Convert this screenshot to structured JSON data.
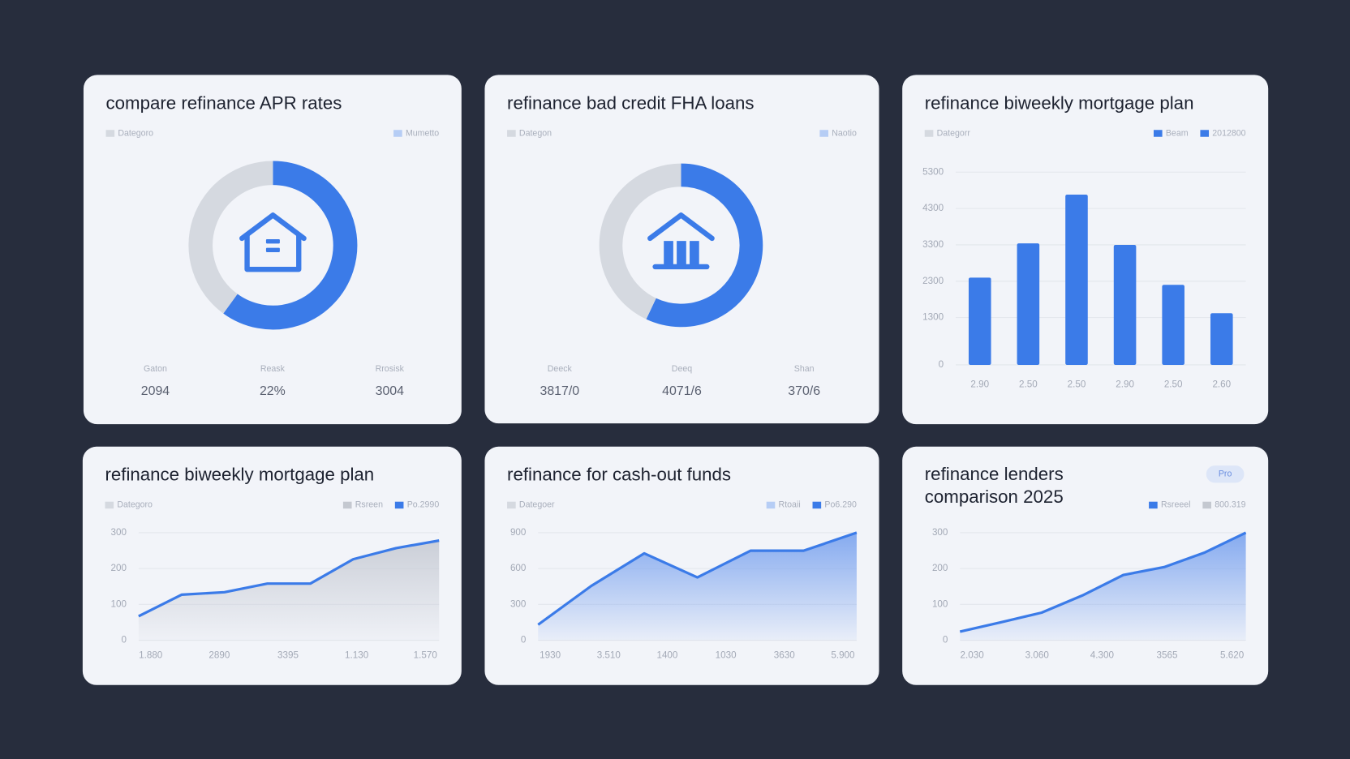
{
  "chart_data": [
    {
      "type": "pie",
      "title": "compare refinance APR rates",
      "legend": [
        {
          "label": "Dategoro",
          "color": "#d5d9e0"
        },
        {
          "label": "Mumetto",
          "color": "#b6cdf5"
        }
      ],
      "values": [
        60,
        40
      ],
      "colors": [
        "#3b7be8",
        "#d5d9e0"
      ],
      "icon": "house",
      "stats": [
        {
          "label": "Gaton",
          "value": "2094"
        },
        {
          "label": "Reask",
          "value": "22%"
        },
        {
          "label": "Rrosisk",
          "value": "3004"
        }
      ]
    },
    {
      "type": "pie",
      "title": "refinance bad credit FHA loans",
      "legend": [
        {
          "label": "Dategon",
          "color": "#d5d9e0"
        },
        {
          "label": "Naotio",
          "color": "#b6cdf5"
        }
      ],
      "values": [
        57,
        43
      ],
      "colors": [
        "#3b7be8",
        "#d5d9e0"
      ],
      "icon": "bank",
      "stats": [
        {
          "label": "Deeck",
          "value": "3817/0"
        },
        {
          "label": "Deeq",
          "value": "4071/6"
        },
        {
          "label": "Shan",
          "value": "370/6"
        }
      ]
    },
    {
      "type": "bar",
      "title": "refinance biweekly mortgage plan",
      "legend": [
        {
          "label": "Dategorr",
          "color": "#d5d9e0"
        },
        {
          "label": "Beam",
          "color": "#3b7be8"
        },
        {
          "label": "2012800",
          "color": "#3b7be8"
        }
      ],
      "categories": [
        "2.90",
        "2.50",
        "2.50",
        "2.90",
        "2.50",
        "2.60"
      ],
      "values": [
        2400,
        3340,
        4680,
        3300,
        2200,
        1420
      ],
      "color": "#3b7be8",
      "ylim": [
        0,
        5300
      ],
      "yticks": [
        0,
        1300,
        2300,
        3300,
        4300,
        5300
      ],
      "grid": true
    },
    {
      "type": "line",
      "title": "refinance biweekly mortgage plan",
      "legend": [
        {
          "label": "Dategoro",
          "color": "#d5d9e0"
        },
        {
          "label": "Rsreen",
          "color": "#c4c8d0"
        },
        {
          "label": "Po.2990",
          "color": "#3b7be8"
        }
      ],
      "x_labels": [
        "1.880",
        "2890",
        "3395",
        "1.130",
        "1.570"
      ],
      "values": [
        67,
        127,
        134,
        158,
        158,
        226,
        257,
        278
      ],
      "color": "#3b7be8",
      "area_color": "#c9cdd6",
      "ylim": [
        0,
        300
      ],
      "yticks": [
        0,
        100,
        200,
        300
      ],
      "grid": true
    },
    {
      "type": "line",
      "title": "refinance for cash-out funds",
      "legend": [
        {
          "label": "Dategoer",
          "color": "#d5d9e0"
        },
        {
          "label": "Rtoaii",
          "color": "#b6cdf5"
        },
        {
          "label": "Po6.290",
          "color": "#3b7be8"
        }
      ],
      "x_labels": [
        "1930",
        "3.510",
        "1400",
        "1030",
        "3630",
        "5.900"
      ],
      "values": [
        130,
        454,
        727,
        526,
        749,
        749,
        900
      ],
      "color": "#3b7be8",
      "area_color": "#7fa6ef",
      "ylim": [
        0,
        900
      ],
      "yticks": [
        0,
        300,
        600,
        900
      ],
      "grid": true
    },
    {
      "type": "line",
      "title": "refinance lenders comparison 2025",
      "badge": "Pro",
      "legend": [
        {
          "label": "Rsreeel",
          "color": "#3b7be8"
        },
        {
          "label": "800.319",
          "color": "#c4c8d0"
        }
      ],
      "x_labels": [
        "2.030",
        "3.060",
        "4.300",
        "3565",
        "5.620"
      ],
      "values": [
        24,
        50,
        77,
        125,
        182,
        204,
        245,
        300
      ],
      "color": "#3b7be8",
      "area_color": "#7fa6ef",
      "ylim": [
        0,
        300
      ],
      "yticks": [
        0,
        100,
        200,
        300
      ],
      "grid": true
    }
  ]
}
